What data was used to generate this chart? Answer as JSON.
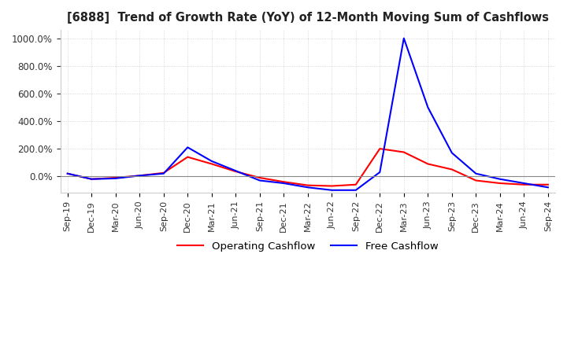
{
  "title": "[6888]  Trend of Growth Rate (YoY) of 12-Month Moving Sum of Cashflows",
  "operating_cashflow": {
    "dates": [
      "Sep-19",
      "Dec-19",
      "Mar-20",
      "Jun-20",
      "Sep-20",
      "Dec-20",
      "Mar-21",
      "Jun-21",
      "Sep-21",
      "Dec-21",
      "Mar-22",
      "Jun-22",
      "Sep-22",
      "Dec-22",
      "Mar-23",
      "Jun-23",
      "Sep-23",
      "Dec-23",
      "Mar-24",
      "Jun-24",
      "Sep-24"
    ],
    "values": [
      20,
      -20,
      -10,
      5,
      25,
      140,
      90,
      35,
      -10,
      -40,
      -65,
      -70,
      -60,
      200,
      175,
      90,
      50,
      -30,
      -50,
      -60,
      -60
    ]
  },
  "free_cashflow": {
    "dates": [
      "Sep-19",
      "Dec-19",
      "Mar-20",
      "Jun-20",
      "Sep-20",
      "Dec-20",
      "Mar-21",
      "Jun-21",
      "Sep-21",
      "Dec-21",
      "Mar-22",
      "Jun-22",
      "Sep-22",
      "Dec-22",
      "Mar-23",
      "Jun-23",
      "Sep-23",
      "Dec-23",
      "Mar-24",
      "Jun-24",
      "Sep-24"
    ],
    "values": [
      20,
      -20,
      -15,
      5,
      20,
      210,
      110,
      40,
      -30,
      -50,
      -80,
      -100,
      -100,
      30,
      1000,
      500,
      170,
      20,
      -20,
      -50,
      -80
    ]
  },
  "operating_color": "#ff0000",
  "free_color": "#0000ff",
  "ylim": [
    -120,
    1060
  ],
  "yticks": [
    0,
    200,
    400,
    600,
    800,
    1000
  ],
  "background_color": "#ffffff",
  "grid_color": "#cccccc",
  "legend_labels": [
    "Operating Cashflow",
    "Free Cashflow"
  ]
}
